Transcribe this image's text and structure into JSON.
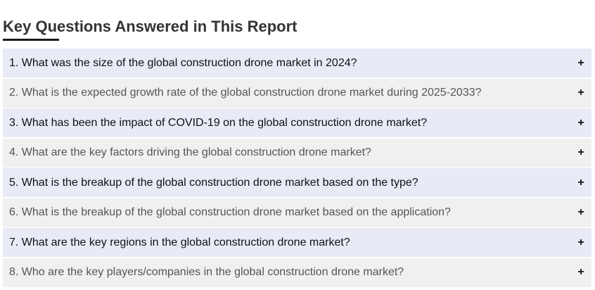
{
  "heading": "Key Questions Answered in This Report",
  "expand_icon": "plus-icon",
  "expand_symbol": "+",
  "faq": [
    {
      "number": "1.",
      "question": "What was the size of the global construction drone market in 2024?"
    },
    {
      "number": "2.",
      "question": "What is the expected growth rate of the global construction drone market during 2025-2033?"
    },
    {
      "number": "3.",
      "question": "What has been the impact of COVID-19 on the global construction drone market?"
    },
    {
      "number": "4.",
      "question": "What are the key factors driving the global construction drone market?"
    },
    {
      "number": "5.",
      "question": "What is the breakup of the global construction drone market based on the type?"
    },
    {
      "number": "6.",
      "question": "What is the breakup of the global construction drone market based on the application?"
    },
    {
      "number": "7.",
      "question": "What are the key regions in the global construction drone market?"
    },
    {
      "number": "8.",
      "question": "Who are the key players/companies in the global construction drone market?"
    }
  ]
}
